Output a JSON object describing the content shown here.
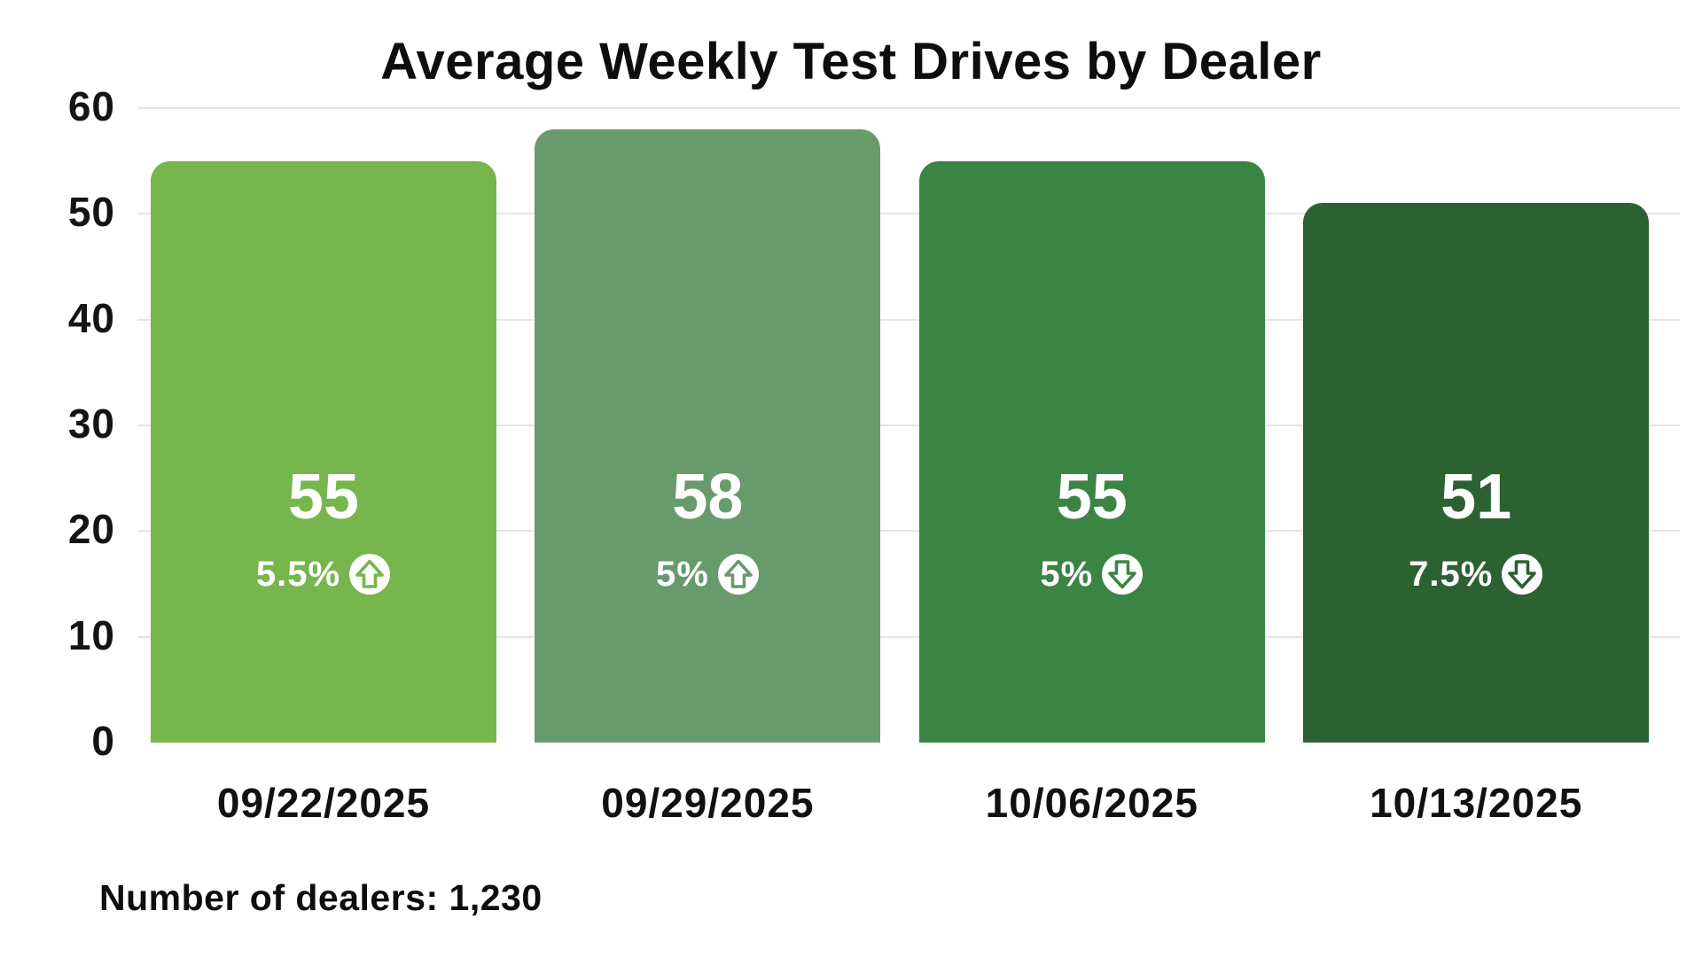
{
  "chart_data": {
    "type": "bar",
    "title": "Average Weekly Test Drives by Dealer",
    "categories": [
      "09/22/2025",
      "09/29/2025",
      "10/06/2025",
      "10/13/2025"
    ],
    "values": [
      55,
      58,
      55,
      51
    ],
    "annotations": [
      {
        "label": "5.5%",
        "direction": "up"
      },
      {
        "label": "5%",
        "direction": "up"
      },
      {
        "label": "5%",
        "direction": "down"
      },
      {
        "label": "7.5%",
        "direction": "down"
      }
    ],
    "bar_colors": [
      "#76b64d",
      "#689b6c",
      "#3a8543",
      "#2c6132"
    ],
    "value_label_color": "#ffffff",
    "yticks": [
      0,
      10,
      20,
      30,
      40,
      50,
      60
    ],
    "ylim": [
      0,
      60
    ],
    "xlabel": "",
    "ylabel": "",
    "grid": true,
    "legend": false,
    "note": "Number of dealers: 1,230"
  }
}
